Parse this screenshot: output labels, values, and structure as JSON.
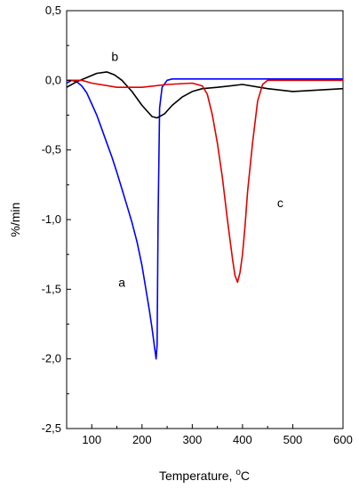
{
  "chart_data": {
    "type": "line",
    "title": "",
    "xlabel": "Temperature, ",
    "xlabel_unit": "°C",
    "ylabel": "%/min",
    "xlim": [
      50,
      600
    ],
    "ylim": [
      -2.5,
      0.5
    ],
    "grid": false,
    "legend": "none",
    "x_ticks": [
      100,
      200,
      300,
      400,
      500,
      600
    ],
    "x_tick_labels": [
      "100",
      "200",
      "300",
      "400",
      "500",
      "600"
    ],
    "y_ticks": [
      0.5,
      0.0,
      -0.5,
      -1.0,
      -1.5,
      -2.0,
      -2.5
    ],
    "y_tick_labels": [
      "0,5",
      "0,0",
      "-0,5",
      "-1,0",
      "-1,5",
      "-2,0",
      "-2,5"
    ],
    "series": [
      {
        "name": "a",
        "color": "#0000ff",
        "x": [
          50,
          60,
          70,
          80,
          90,
          100,
          110,
          120,
          130,
          140,
          150,
          160,
          170,
          180,
          190,
          200,
          210,
          215,
          220,
          225,
          228,
          230,
          232,
          235,
          240,
          250,
          260,
          280,
          300,
          350,
          400,
          450,
          500,
          550,
          600
        ],
        "y": [
          -0.02,
          0.0,
          -0.01,
          -0.04,
          -0.09,
          -0.17,
          -0.25,
          -0.35,
          -0.45,
          -0.55,
          -0.66,
          -0.78,
          -0.9,
          -1.02,
          -1.16,
          -1.33,
          -1.55,
          -1.66,
          -1.78,
          -1.92,
          -2.0,
          -1.9,
          -1.0,
          -0.2,
          -0.05,
          0.0,
          0.01,
          0.01,
          0.01,
          0.01,
          0.01,
          0.01,
          0.01,
          0.01,
          0.01
        ]
      },
      {
        "name": "b",
        "color": "#000000",
        "x": [
          50,
          70,
          90,
          110,
          130,
          145,
          160,
          180,
          200,
          220,
          230,
          245,
          260,
          280,
          300,
          320,
          350,
          400,
          450,
          500,
          550,
          600
        ],
        "y": [
          -0.05,
          -0.01,
          0.02,
          0.05,
          0.06,
          0.04,
          0.0,
          -0.08,
          -0.18,
          -0.26,
          -0.27,
          -0.24,
          -0.18,
          -0.12,
          -0.08,
          -0.06,
          -0.05,
          -0.03,
          -0.06,
          -0.08,
          -0.07,
          -0.06
        ]
      },
      {
        "name": "c",
        "color": "#e00000",
        "x": [
          50,
          80,
          100,
          150,
          200,
          250,
          300,
          320,
          330,
          340,
          350,
          360,
          370,
          380,
          385,
          390,
          395,
          400,
          405,
          410,
          420,
          430,
          440,
          450,
          500,
          550,
          600
        ],
        "y": [
          0.0,
          0.0,
          -0.02,
          -0.05,
          -0.05,
          -0.03,
          -0.02,
          -0.04,
          -0.1,
          -0.25,
          -0.45,
          -0.7,
          -1.0,
          -1.28,
          -1.4,
          -1.45,
          -1.38,
          -1.25,
          -1.05,
          -0.8,
          -0.45,
          -0.15,
          -0.03,
          0.0,
          0.0,
          0.0,
          0.0
        ]
      }
    ],
    "annotations": [
      {
        "text": "a",
        "x": 160,
        "y": -1.45
      },
      {
        "text": "b",
        "x": 146,
        "y": 0.17
      },
      {
        "text": "c",
        "x": 475,
        "y": -0.88
      }
    ]
  }
}
